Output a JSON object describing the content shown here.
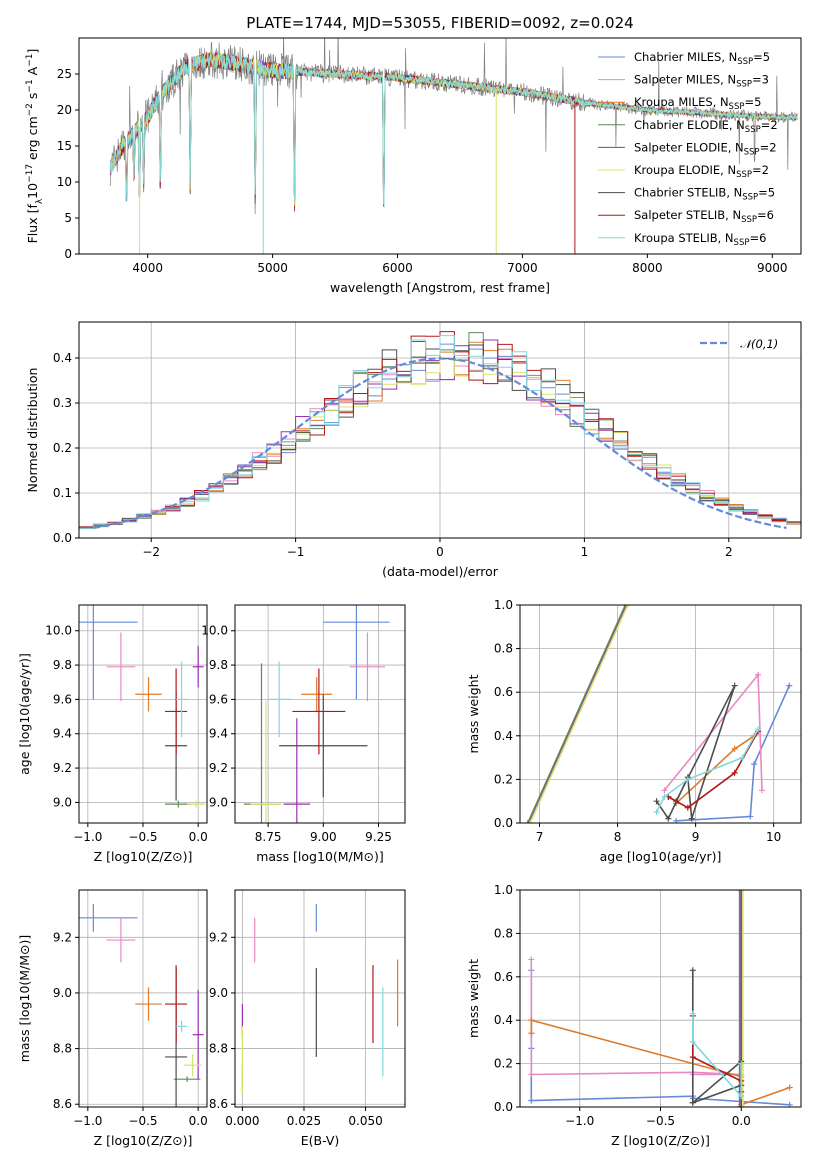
{
  "title": "PLATE=1744, MJD=53055, FIBERID=0092, z=0.024",
  "colors": {
    "c0": "#6689d9",
    "c1": "#e78ac3",
    "c2": "#e07b2a",
    "c3": "#5b8c5a",
    "c4": "#9b2fb0",
    "c5": "#d9e36a",
    "c6": "#4d4d4d",
    "c7": "#b21818",
    "c8": "#7fd8df",
    "gray": "#808080"
  },
  "legend": [
    {
      "label": "Chabrier MILES, N",
      "sub": "SSP",
      "tail": "=5",
      "color": "c0"
    },
    {
      "label": "Salpeter MILES, N",
      "sub": "SSP",
      "tail": "=3",
      "color": "c1"
    },
    {
      "label": "Kroupa MILES, N",
      "sub": "SSP",
      "tail": "=5",
      "color": "c2"
    },
    {
      "label": "Chabrier ELODIE, N",
      "sub": "SSP",
      "tail": "=2",
      "color": "c3"
    },
    {
      "label": "Salpeter ELODIE, N",
      "sub": "SSP",
      "tail": "=2",
      "color": "c4"
    },
    {
      "label": "Kroupa ELODIE, N",
      "sub": "SSP",
      "tail": "=2",
      "color": "c5"
    },
    {
      "label": "Chabrier STELIB, N",
      "sub": "SSP",
      "tail": "=5",
      "color": "c6"
    },
    {
      "label": "Salpeter STELIB, N",
      "sub": "SSP",
      "tail": "=6",
      "color": "c7"
    },
    {
      "label": "Kroupa STELIB, N",
      "sub": "SSP",
      "tail": "=6",
      "color": "c8"
    }
  ],
  "chart_data": [
    {
      "id": "spectrum",
      "type": "line",
      "xlabel": "wavelength [Angstrom, rest frame]",
      "ylabel": "Flux [f_λ 10^-17 erg cm^-2 s^-1 A^-1]",
      "xlim": [
        3450,
        9230
      ],
      "ylim": [
        0,
        30
      ],
      "xticks": [
        4000,
        5000,
        6000,
        7000,
        8000,
        9000
      ],
      "yticks": [
        0,
        5,
        10,
        15,
        20,
        25
      ],
      "x_range_data": [
        3700,
        9200
      ],
      "profile": [
        [
          3700,
          12
        ],
        [
          3800,
          15
        ],
        [
          3900,
          17
        ],
        [
          4000,
          19
        ],
        [
          4100,
          22
        ],
        [
          4200,
          24
        ],
        [
          4300,
          26
        ],
        [
          4500,
          27
        ],
        [
          4700,
          26.5
        ],
        [
          5000,
          25.5
        ],
        [
          5500,
          25
        ],
        [
          6000,
          24.5
        ],
        [
          6500,
          23.5
        ],
        [
          7000,
          22.5
        ],
        [
          7500,
          21
        ],
        [
          8000,
          20
        ],
        [
          8500,
          19.5
        ],
        [
          9000,
          19
        ],
        [
          9200,
          19
        ]
      ],
      "dips": [
        [
          3830,
          9
        ],
        [
          3890,
          7
        ],
        [
          3934,
          11
        ],
        [
          3968,
          9
        ],
        [
          4101,
          14
        ],
        [
          4340,
          17
        ],
        [
          4861,
          20
        ],
        [
          5175,
          21
        ],
        [
          5890,
          22
        ]
      ],
      "drops": [
        {
          "x": 3935,
          "color": "c5"
        },
        {
          "x": 4925,
          "color": "c8"
        },
        {
          "x": 6790,
          "color": "c5"
        },
        {
          "x": 7420,
          "color": "c7"
        }
      ]
    },
    {
      "id": "residuals",
      "type": "histogram",
      "xlabel": "(data-model)/error",
      "ylabel": "Normed distribution",
      "xlim": [
        -2.5,
        2.5
      ],
      "ylim": [
        0,
        0.48
      ],
      "xticks": [
        -2,
        -1,
        0,
        1,
        2
      ],
      "yticks": [
        0.0,
        0.1,
        0.2,
        0.3,
        0.4
      ],
      "bin_width": 0.1,
      "reference": {
        "label": "𝒩(0,1)",
        "mu": 0,
        "sigma": 1,
        "color": "c0"
      }
    },
    {
      "id": "age-vs-Z",
      "type": "scatter",
      "xlabel": "Z [log10(Z/Z⊙)]",
      "ylabel": "age [log10(age/yr)]",
      "xlim": [
        -1.08,
        0.08
      ],
      "ylim": [
        8.88,
        10.15
      ],
      "xticks": [
        -1.0,
        -0.5,
        0.0
      ],
      "yticks": [
        9.0,
        9.2,
        9.4,
        9.6,
        9.8,
        10.0
      ],
      "points": [
        {
          "c": "c0",
          "x": -0.95,
          "xerr": 0.4,
          "y": 10.05,
          "yerr": 0.45
        },
        {
          "c": "c1",
          "x": -0.7,
          "xerr": 0.13,
          "y": 9.79,
          "yerr": 0.2
        },
        {
          "c": "c2",
          "x": -0.45,
          "xerr": 0.12,
          "y": 9.63,
          "yerr": 0.1
        },
        {
          "c": "c3",
          "x": -0.18,
          "xerr": 0.12,
          "y": 8.99,
          "yerr": 0.02
        },
        {
          "c": "c4",
          "x": 0.0,
          "xerr": 0.05,
          "y": 9.79,
          "yerr": 0.12
        },
        {
          "c": "c5",
          "x": -0.02,
          "xerr": 0.08,
          "y": 8.99,
          "yerr": 0.02
        },
        {
          "c": "c6",
          "x": -0.2,
          "xerr": 0.1,
          "y": 9.33,
          "yerr": 0.32
        },
        {
          "c": "c7",
          "x": -0.2,
          "xerr": 0.1,
          "y": 9.53,
          "yerr": 0.25
        },
        {
          "c": "c8",
          "x": -0.15,
          "xerr": 0.05,
          "y": 9.6,
          "yerr": 0.22
        }
      ]
    },
    {
      "id": "age-vs-mass",
      "type": "scatter",
      "xlabel": "mass [log10(M/M⊙)]",
      "ylabel": "",
      "xlim": [
        8.6,
        9.37
      ],
      "ylim": [
        8.88,
        10.15
      ],
      "xticks": [
        8.75,
        9.0,
        9.25
      ],
      "yticks": [
        9.0,
        9.2,
        9.4,
        9.6,
        9.8,
        10.0
      ],
      "points": [
        {
          "c": "c0",
          "x": 9.15,
          "xerr": 0.15,
          "y": 10.05,
          "yerr": 0.45
        },
        {
          "c": "c1",
          "x": 9.2,
          "xerr": 0.08,
          "y": 9.79,
          "yerr": 0.2
        },
        {
          "c": "c2",
          "x": 8.97,
          "xerr": 0.07,
          "y": 9.63,
          "yerr": 0.1
        },
        {
          "c": "c3",
          "x": 8.72,
          "xerr": 0.08,
          "y": 8.99,
          "yerr": 0.82
        },
        {
          "c": "c4",
          "x": 8.88,
          "xerr": 0.06,
          "y": 8.99,
          "yerr": 0.5
        },
        {
          "c": "c5",
          "x": 8.74,
          "xerr": 0.07,
          "y": 8.99,
          "yerr": 0.6
        },
        {
          "c": "c6",
          "x": 9.0,
          "xerr": 0.2,
          "y": 9.33,
          "yerr": 0.3
        },
        {
          "c": "c7",
          "x": 8.98,
          "xerr": 0.12,
          "y": 9.53,
          "yerr": 0.25
        },
        {
          "c": "c8",
          "x": 8.8,
          "xerr": 0.05,
          "y": 9.6,
          "yerr": 0.22
        }
      ]
    },
    {
      "id": "mass-weight-vs-age",
      "type": "line",
      "xlabel": "age [log10(age/yr)]",
      "ylabel": "mass weight",
      "xlim": [
        6.75,
        10.35
      ],
      "ylim": [
        0,
        1
      ],
      "xticks": [
        7,
        8,
        9,
        10
      ],
      "yticks": [
        0.0,
        0.2,
        0.4,
        0.6,
        0.8,
        1.0
      ],
      "series": [
        {
          "c": "c0",
          "x": [
            8.75,
            9.7,
            9.75,
            10.2
          ],
          "y": [
            0.01,
            0.03,
            0.27,
            0.63
          ]
        },
        {
          "c": "c1",
          "x": [
            8.6,
            9.8,
            9.85
          ],
          "y": [
            0.15,
            0.68,
            0.15
          ]
        },
        {
          "c": "c2",
          "x": [
            8.75,
            9.5,
            9.75
          ],
          "y": [
            0.09,
            0.34,
            0.4
          ]
        },
        {
          "c": "c3",
          "x": [
            6.85,
            8.1
          ],
          "y": [
            0.0,
            1.0
          ]
        },
        {
          "c": "c4",
          "x": [
            6.87,
            8.12
          ],
          "y": [
            0.0,
            1.0
          ]
        },
        {
          "c": "c5",
          "x": [
            6.88,
            8.13
          ],
          "y": [
            0.0,
            1.0
          ]
        },
        {
          "c": "c6",
          "x": [
            8.5,
            8.65,
            8.9,
            8.95,
            9.5,
            8.75,
            8.65
          ],
          "y": [
            0.1,
            0.02,
            0.21,
            0.02,
            0.63,
            0.1,
            0.12
          ]
        },
        {
          "c": "c7",
          "x": [
            8.65,
            8.9,
            9.5,
            9.8
          ],
          "y": [
            0.12,
            0.07,
            0.23,
            0.42
          ]
        },
        {
          "c": "c8",
          "x": [
            8.5,
            8.6,
            8.9,
            9.6,
            9.8
          ],
          "y": [
            0.05,
            0.12,
            0.2,
            0.3,
            0.43
          ]
        }
      ]
    },
    {
      "id": "mass-vs-Z",
      "type": "scatter",
      "xlabel": "Z [log10(Z/Z⊙)]",
      "ylabel": "mass [log10(M/M⊙)]",
      "xlim": [
        -1.08,
        0.08
      ],
      "ylim": [
        8.59,
        9.37
      ],
      "xticks": [
        -1.0,
        -0.5,
        0.0
      ],
      "yticks": [
        8.6,
        8.8,
        9.0,
        9.2
      ],
      "points": [
        {
          "c": "c0",
          "x": -0.95,
          "xerr": 0.4,
          "y": 9.27,
          "yerr": 0.05
        },
        {
          "c": "c1",
          "x": -0.7,
          "xerr": 0.13,
          "y": 9.19,
          "yerr": 0.08
        },
        {
          "c": "c2",
          "x": -0.45,
          "xerr": 0.12,
          "y": 8.96,
          "yerr": 0.06
        },
        {
          "c": "c3",
          "x": -0.1,
          "xerr": 0.12,
          "y": 8.69,
          "yerr": 0.01
        },
        {
          "c": "c4",
          "x": 0.0,
          "xerr": 0.05,
          "y": 8.85,
          "yerr": 0.16
        },
        {
          "c": "c5",
          "x": -0.05,
          "xerr": 0.08,
          "y": 8.74,
          "yerr": 0.04
        },
        {
          "c": "c6",
          "x": -0.2,
          "xerr": 0.1,
          "y": 8.77,
          "yerr": 0.32
        },
        {
          "c": "c7",
          "x": -0.2,
          "xerr": 0.1,
          "y": 8.96,
          "yerr": 0.14
        },
        {
          "c": "c8",
          "x": -0.15,
          "xerr": 0.05,
          "y": 8.88,
          "yerr": 0.02
        }
      ]
    },
    {
      "id": "mass-vs-ebv",
      "type": "scatter",
      "xlabel": "E(B-V)",
      "ylabel": "",
      "xlim": [
        -0.003,
        0.066
      ],
      "ylim": [
        8.59,
        9.37
      ],
      "xticks": [
        0.0,
        0.025,
        0.05
      ],
      "yticks": [
        8.6,
        8.8,
        9.0,
        9.2
      ],
      "points": [
        {
          "c": "c0",
          "x": 0.03,
          "y": 9.27,
          "yerr": 0.05
        },
        {
          "c": "c1",
          "x": 0.005,
          "y": 9.19,
          "yerr": 0.08
        },
        {
          "c": "c2",
          "x": 0.063,
          "y": 9.0,
          "yerr": 0.12
        },
        {
          "c": "c3",
          "x": 0.0,
          "y": 8.69,
          "yerr": 0.05
        },
        {
          "c": "c4",
          "x": 0.0,
          "y": 8.9,
          "yerr": 0.06
        },
        {
          "c": "c5",
          "x": 0.0,
          "y": 8.76,
          "yerr": 0.12
        },
        {
          "c": "c6",
          "x": 0.03,
          "y": 8.93,
          "yerr": 0.16
        },
        {
          "c": "c7",
          "x": 0.053,
          "y": 8.96,
          "yerr": 0.14
        },
        {
          "c": "c8",
          "x": 0.057,
          "y": 8.86,
          "yerr": 0.16
        }
      ]
    },
    {
      "id": "mass-weight-vs-Z",
      "type": "line",
      "xlabel": "Z [log10(Z/Z⊙)]",
      "ylabel": "mass weight",
      "xlim": [
        -1.37,
        0.37
      ],
      "ylim": [
        0,
        1
      ],
      "xticks": [
        -1.0,
        -0.5,
        0.0
      ],
      "yticks": [
        0.0,
        0.2,
        0.4,
        0.6,
        0.8,
        1.0
      ],
      "series": [
        {
          "c": "c0",
          "x": [
            -1.3,
            -1.3,
            -1.3,
            -0.3,
            -0.3,
            0.3
          ],
          "y": [
            0.63,
            0.27,
            0.03,
            0.05,
            0.04,
            0.01
          ]
        },
        {
          "c": "c1",
          "x": [
            -1.3,
            -1.3,
            -0.3,
            0.0,
            -0.3
          ],
          "y": [
            0.68,
            0.15,
            0.16,
            0.15,
            0.15
          ]
        },
        {
          "c": "c2",
          "x": [
            -1.3,
            -1.3,
            0.0,
            0.0,
            0.3
          ],
          "y": [
            0.34,
            0.4,
            0.14,
            0.01,
            0.09
          ]
        },
        {
          "c": "c3",
          "x": [
            -0.01,
            -0.01
          ],
          "y": [
            0.0,
            1.0
          ]
        },
        {
          "c": "c4",
          "x": [
            0.0,
            0.0
          ],
          "y": [
            0.0,
            1.0
          ]
        },
        {
          "c": "c5",
          "x": [
            0.01,
            0.01
          ],
          "y": [
            0.0,
            1.0
          ]
        },
        {
          "c": "c6",
          "x": [
            -0.3,
            -0.3,
            0.0,
            0.0,
            -0.3
          ],
          "y": [
            0.63,
            0.02,
            0.1,
            0.21,
            0.02
          ]
        },
        {
          "c": "c7",
          "x": [
            -0.3,
            -0.3,
            0.0,
            0.0
          ],
          "y": [
            0.42,
            0.23,
            0.12,
            0.07
          ]
        },
        {
          "c": "c8",
          "x": [
            -0.3,
            -0.3,
            0.0,
            0.0
          ],
          "y": [
            0.43,
            0.3,
            0.05,
            0.2
          ]
        }
      ]
    }
  ]
}
